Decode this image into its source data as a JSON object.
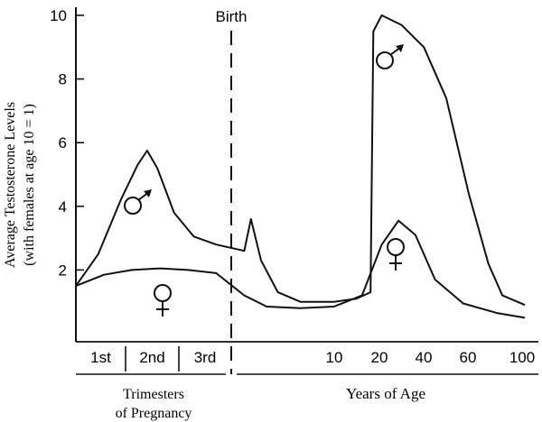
{
  "chart_data": {
    "type": "line",
    "title": "",
    "ylabel_line1": "Average Testosterone Levels",
    "ylabel_line2": "(with females at age 10 = 1)",
    "yticks": [
      "2",
      "4",
      "6",
      "8",
      "10"
    ],
    "ylim": [
      0,
      10.5
    ],
    "birth_label": "Birth",
    "prenatal": {
      "label_line1": "Trimesters",
      "label_line2": "of Pregnancy",
      "trimesters": [
        "1st",
        "2nd",
        "3rd"
      ]
    },
    "postnatal": {
      "label": "Years of Age",
      "ticks": [
        "10",
        "20",
        "40",
        "60",
        "100"
      ]
    },
    "series": [
      {
        "symbol": "♂",
        "points": [
          [
            0.0,
            1.5
          ],
          [
            0.4,
            2.5
          ],
          [
            0.8,
            4.2
          ],
          [
            1.1,
            5.3
          ],
          [
            1.27,
            5.75
          ],
          [
            1.45,
            5.2
          ],
          [
            1.75,
            3.8
          ],
          [
            2.1,
            3.05
          ],
          [
            2.5,
            2.8
          ],
          [
            3.0,
            2.6
          ],
          [
            3.12,
            3.6
          ],
          [
            3.3,
            2.3
          ],
          [
            3.6,
            1.3
          ],
          [
            4.0,
            1.0
          ],
          [
            4.6,
            1.0
          ],
          [
            5.0,
            1.1
          ],
          [
            5.25,
            1.3
          ],
          [
            5.3,
            9.5
          ],
          [
            5.45,
            10.0
          ],
          [
            5.8,
            9.7
          ],
          [
            6.2,
            9.0
          ],
          [
            6.6,
            7.4
          ],
          [
            7.0,
            4.4
          ],
          [
            7.35,
            2.2
          ],
          [
            7.6,
            1.2
          ],
          [
            8.0,
            0.9
          ]
        ]
      },
      {
        "symbol": "♀",
        "points": [
          [
            0.0,
            1.5
          ],
          [
            0.5,
            1.85
          ],
          [
            1.0,
            2.0
          ],
          [
            1.5,
            2.05
          ],
          [
            2.0,
            2.0
          ],
          [
            2.5,
            1.9
          ],
          [
            3.0,
            1.2
          ],
          [
            3.4,
            0.85
          ],
          [
            4.0,
            0.8
          ],
          [
            4.6,
            0.85
          ],
          [
            5.1,
            1.2
          ],
          [
            5.45,
            2.8
          ],
          [
            5.75,
            3.55
          ],
          [
            6.05,
            3.1
          ],
          [
            6.4,
            1.7
          ],
          [
            6.9,
            0.95
          ],
          [
            7.5,
            0.65
          ],
          [
            8.0,
            0.5
          ]
        ]
      }
    ]
  }
}
